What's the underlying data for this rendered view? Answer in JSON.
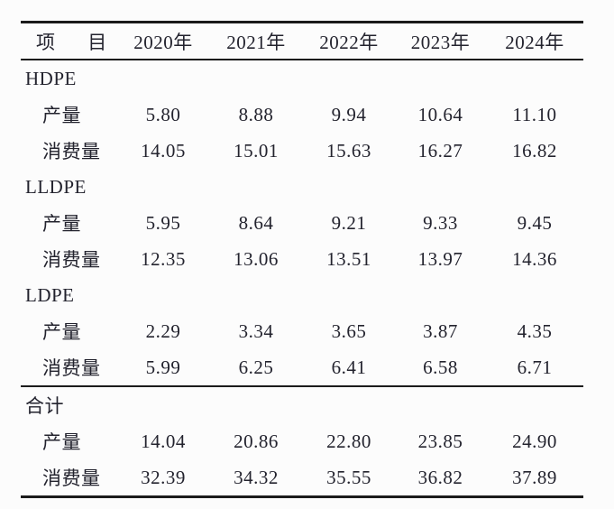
{
  "chart_data": {
    "type": "table",
    "columns": [
      "项 目",
      "2020年",
      "2021年",
      "2022年",
      "2023年",
      "2024年"
    ],
    "row_label_production": "产量",
    "row_label_consumption": "消费量",
    "sections": [
      {
        "name": "HDPE",
        "rows": [
          {
            "label": "产量",
            "values": [
              "5.80",
              "8.88",
              "9.94",
              "10.64",
              "11.10"
            ]
          },
          {
            "label": "消费量",
            "values": [
              "14.05",
              "15.01",
              "15.63",
              "16.27",
              "16.82"
            ]
          }
        ]
      },
      {
        "name": "LLDPE",
        "rows": [
          {
            "label": "产量",
            "values": [
              "5.95",
              "8.64",
              "9.21",
              "9.33",
              "9.45"
            ]
          },
          {
            "label": "消费量",
            "values": [
              "12.35",
              "13.06",
              "13.51",
              "13.97",
              "14.36"
            ]
          }
        ]
      },
      {
        "name": "LDPE",
        "rows": [
          {
            "label": "产量",
            "values": [
              "2.29",
              "3.34",
              "3.65",
              "3.87",
              "4.35"
            ]
          },
          {
            "label": "消费量",
            "values": [
              "5.99",
              "6.25",
              "6.41",
              "6.58",
              "6.71"
            ]
          }
        ]
      },
      {
        "name": "合计",
        "rows": [
          {
            "label": "产量",
            "values": [
              "14.04",
              "20.86",
              "22.80",
              "23.85",
              "24.90"
            ]
          },
          {
            "label": "消费量",
            "values": [
              "32.39",
              "34.32",
              "35.55",
              "36.82",
              "37.89"
            ]
          }
        ]
      }
    ],
    "colors": {
      "text": "#23232e",
      "rule": "#1b1b1b",
      "background": "#fcfcfc"
    }
  }
}
